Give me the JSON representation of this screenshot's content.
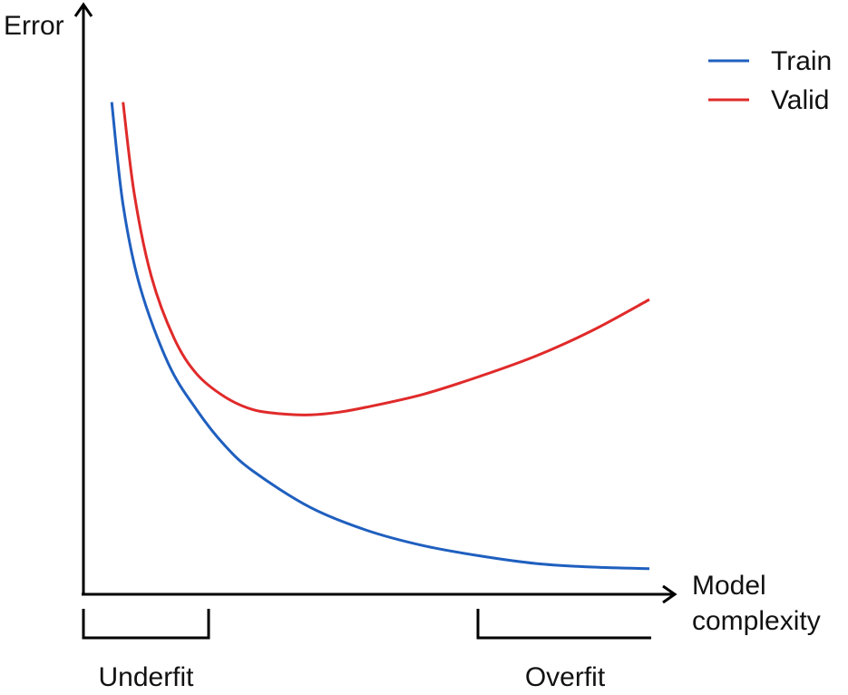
{
  "chart_data": {
    "type": "line",
    "title": "",
    "xlabel": [
      "Model",
      "complexity"
    ],
    "ylabel": "Error",
    "x_ticks": "none",
    "y_ticks": "none",
    "grid": false,
    "legend": {
      "placement": "top-right",
      "entries": [
        "Train",
        "Valid"
      ]
    },
    "series": [
      {
        "name": "Train",
        "color": "#1f5fbf",
        "x": [
          0.5,
          0.7,
          1,
          1.5,
          2,
          2.5,
          3,
          4,
          5,
          6,
          7,
          8,
          9,
          10
        ],
        "y": [
          96,
          76,
          60,
          45,
          36,
          29,
          24,
          17,
          12.5,
          9.5,
          7.5,
          6,
          5.3,
          5
        ]
      },
      {
        "name": "Valid",
        "color": "#e02a2a",
        "x": [
          0.7,
          0.9,
          1.2,
          1.6,
          2,
          2.5,
          3,
          3.5,
          4,
          4.5,
          5,
          6,
          7,
          8,
          9,
          10
        ],
        "y": [
          96,
          78,
          62,
          50,
          43,
          38.5,
          36,
          35.2,
          35,
          35.5,
          36.5,
          39,
          42.5,
          46.5,
          51.5,
          57.5
        ]
      }
    ],
    "xlim": [
      0,
      10
    ],
    "ylim": [
      0,
      100
    ],
    "annotations": [
      {
        "text": "Underfit",
        "x_range": [
          0,
          2.2
        ]
      },
      {
        "text": "Overfit",
        "x_range": [
          7.2,
          10.1
        ]
      }
    ]
  }
}
